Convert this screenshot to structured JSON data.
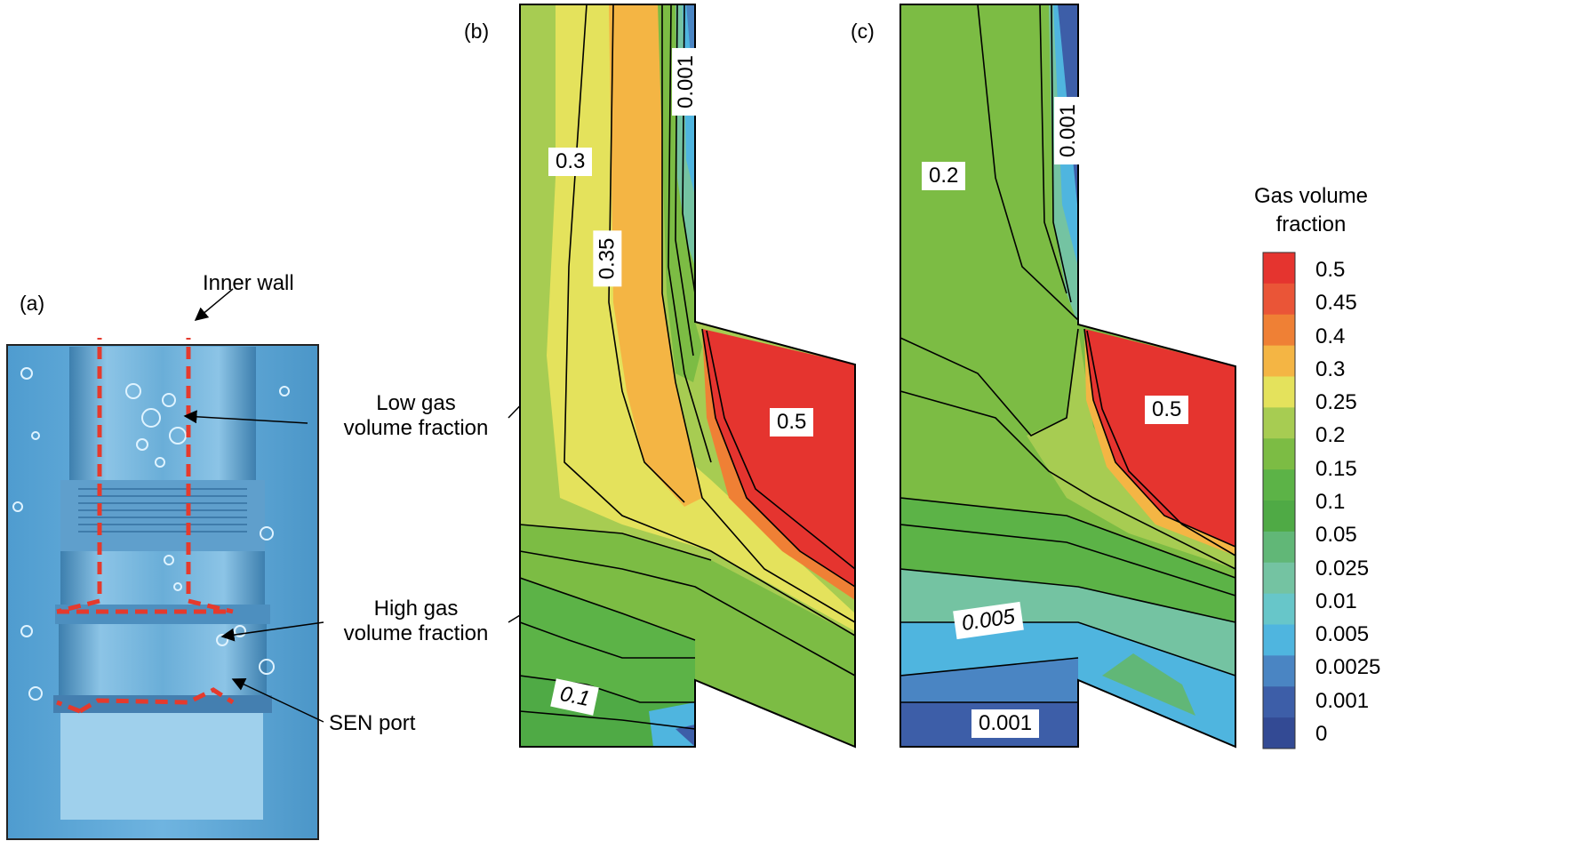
{
  "panels": {
    "a": "(a)",
    "b": "(b)",
    "c": "(c)"
  },
  "annotations": {
    "inner_wall": "Inner wall",
    "low_gas": [
      "Low gas",
      "volume fraction"
    ],
    "high_gas": [
      "High gas",
      "volume fraction"
    ],
    "sen_port": "SEN port"
  },
  "contour_labels_b": {
    "l03": "0.3",
    "l035": "0.35",
    "l0001": "0.001",
    "l05": "0.5",
    "l01": "0.1"
  },
  "contour_labels_c": {
    "l02": "0.2",
    "l0001_top": "0.001",
    "l05": "0.5",
    "l0005": "0.005",
    "l0001_bottom": "0.001"
  },
  "colorbar": {
    "title": [
      "Gas volume",
      "fraction"
    ],
    "ticks": [
      "0.5",
      "0.45",
      "0.4",
      "0.3",
      "0.25",
      "0.2",
      "0.15",
      "0.1",
      "0.05",
      "0.025",
      "0.01",
      "0.005",
      "0.0025",
      "0.001",
      "0"
    ],
    "colors": [
      "#e5342f",
      "#ea5537",
      "#ef8035",
      "#f4b544",
      "#e4e25c",
      "#a7cc52",
      "#7cbc44",
      "#5cb347",
      "#4faa45",
      "#61b777",
      "#74c3a2",
      "#67c6c9",
      "#4fb5df",
      "#4a85c3",
      "#3d5ea8",
      "#334a94"
    ]
  }
}
